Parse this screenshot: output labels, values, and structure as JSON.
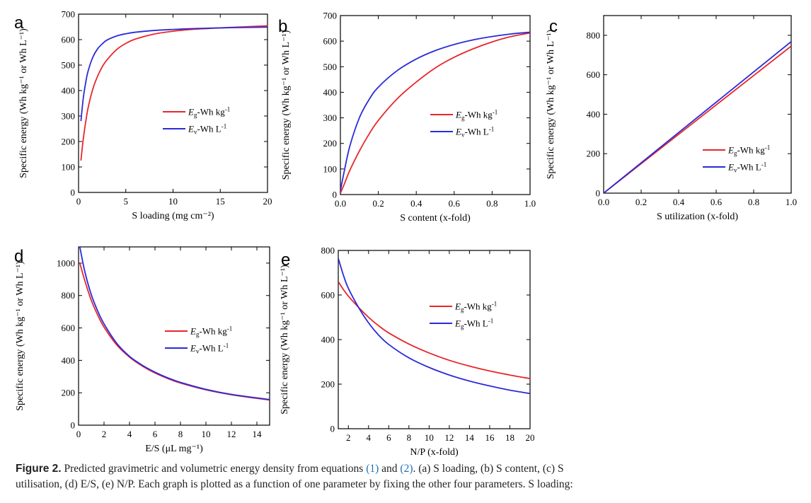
{
  "colors": {
    "red": "#e8262a",
    "blue": "#2b2bd9"
  },
  "chart_data": [
    {
      "letter": "a",
      "type": "line",
      "xlabel": "S loading (mg cm⁻²)",
      "ylabel": "Specific energy (Wh kg⁻¹ or Wh L⁻¹)",
      "xlim": [
        0,
        20
      ],
      "ylim": [
        0,
        700
      ],
      "xticks": [
        "0",
        "5",
        "10",
        "15",
        "20"
      ],
      "yticks": [
        "0",
        "100",
        "200",
        "300",
        "400",
        "500",
        "600",
        "700"
      ],
      "legend": {
        "position": "center-right"
      },
      "series": [
        {
          "name_main": "E",
          "name_sub": "g",
          "name_rest": "-Wh kg",
          "name_sup": "-1",
          "color": "red",
          "x": [
            0.25,
            0.5,
            0.75,
            1,
            1.5,
            2,
            2.5,
            3,
            4,
            5,
            6,
            8,
            10,
            12,
            15,
            18,
            20
          ],
          "y": [
            125,
            210,
            275,
            330,
            405,
            455,
            493,
            520,
            560,
            585,
            602,
            622,
            633,
            640,
            646,
            651,
            654
          ]
        },
        {
          "name_main": "E",
          "name_sub": "v",
          "name_rest": "-Wh L",
          "name_sup": "-1",
          "color": "blue",
          "x": [
            0.25,
            0.5,
            0.75,
            1,
            1.5,
            2,
            2.5,
            3,
            4,
            5,
            6,
            8,
            10,
            12,
            15,
            18,
            20
          ],
          "y": [
            280,
            370,
            430,
            475,
            530,
            563,
            583,
            598,
            614,
            623,
            629,
            636,
            640,
            643,
            646,
            648,
            649
          ]
        }
      ]
    },
    {
      "letter": "b",
      "type": "line",
      "xlabel": "S content (x-fold)",
      "ylabel": "Specific energy (Wh kg⁻¹ or Wh L⁻¹)",
      "xlim": [
        0,
        1
      ],
      "ylim": [
        0,
        700
      ],
      "xticks": [
        "0.0",
        "0.2",
        "0.4",
        "0.6",
        "0.8",
        "1.0"
      ],
      "yticks": [
        "0",
        "100",
        "200",
        "300",
        "400",
        "500",
        "600",
        "700"
      ],
      "legend": {
        "position": "center-right"
      },
      "series": [
        {
          "name_main": "E",
          "name_sub": "g",
          "name_rest": "-Wh kg",
          "name_sup": "-1",
          "color": "red",
          "x": [
            0,
            0.02,
            0.05,
            0.1,
            0.15,
            0.2,
            0.3,
            0.4,
            0.5,
            0.6,
            0.7,
            0.8,
            0.9,
            1.0
          ],
          "y": [
            5,
            40,
            95,
            170,
            235,
            290,
            375,
            440,
            495,
            537,
            570,
            597,
            618,
            632
          ]
        },
        {
          "name_main": "E",
          "name_sub": "v",
          "name_rest": "-Wh L",
          "name_sup": "-1",
          "color": "blue",
          "x": [
            0,
            0.02,
            0.05,
            0.1,
            0.15,
            0.2,
            0.3,
            0.4,
            0.5,
            0.6,
            0.7,
            0.8,
            0.9,
            1.0
          ],
          "y": [
            15,
            90,
            190,
            300,
            370,
            420,
            485,
            530,
            563,
            587,
            605,
            618,
            628,
            635
          ]
        }
      ]
    },
    {
      "letter": "c",
      "type": "line",
      "xlabel": "S utilization (x-fold)",
      "ylabel": "Specific energy (Wh kg⁻¹ or Wh L⁻¹)",
      "xlim": [
        0,
        1
      ],
      "ylim": [
        0,
        900
      ],
      "xticks": [
        "0.0",
        "0.2",
        "0.4",
        "0.6",
        "0.8",
        "1.0"
      ],
      "yticks": [
        "0",
        "200",
        "400",
        "600",
        "800"
      ],
      "legend": {
        "position": "lower-right"
      },
      "series": [
        {
          "name_main": "E",
          "name_sub": "g",
          "name_rest": "-Wh kg",
          "name_sup": "-1",
          "color": "red",
          "x": [
            0,
            1.0
          ],
          "y": [
            0,
            745
          ]
        },
        {
          "name_main": "E",
          "name_sub": "v",
          "name_rest": "-Wh L",
          "name_sup": "-1",
          "color": "blue",
          "x": [
            0,
            1.0
          ],
          "y": [
            0,
            768
          ]
        }
      ]
    },
    {
      "letter": "d",
      "type": "line",
      "xlabel": "E/S (μL mg⁻¹)",
      "ylabel": "Specific energy (Wh kg⁻¹ or Wh L⁻¹)",
      "xlim": [
        0,
        15
      ],
      "ylim": [
        0,
        1100
      ],
      "xticks": [
        "0",
        "2",
        "4",
        "6",
        "8",
        "10",
        "12",
        "14"
      ],
      "yticks": [
        "0",
        "200",
        "400",
        "600",
        "800",
        "1000"
      ],
      "legend": {
        "position": "center-right"
      },
      "series": [
        {
          "name_main": "E",
          "name_sub": "g",
          "name_rest": "-Wh kg",
          "name_sup": "-1",
          "color": "red",
          "x": [
            0.1,
            0.5,
            1,
            1.5,
            2,
            3,
            4,
            5,
            6,
            7,
            8,
            10,
            12,
            15
          ],
          "y": [
            1000,
            890,
            770,
            680,
            605,
            495,
            420,
            365,
            322,
            288,
            260,
            218,
            188,
            155
          ]
        },
        {
          "name_main": "E",
          "name_sub": "v",
          "name_rest": "-Wh L",
          "name_sup": "-1",
          "color": "blue",
          "x": [
            0.1,
            0.5,
            1,
            1.5,
            2,
            3,
            4,
            5,
            6,
            7,
            8,
            10,
            12,
            15
          ],
          "y": [
            1100,
            945,
            805,
            705,
            625,
            505,
            425,
            370,
            327,
            292,
            264,
            221,
            190,
            158
          ]
        }
      ]
    },
    {
      "letter": "e",
      "type": "line",
      "xlabel": "N/P (x-fold)",
      "ylabel": "Specific energy (Wh kg⁻¹ or Wh L⁻¹)",
      "xlim": [
        1,
        20
      ],
      "ylim": [
        0,
        800
      ],
      "xticks": [
        "2",
        "4",
        "6",
        "8",
        "10",
        "12",
        "14",
        "16",
        "18",
        "20"
      ],
      "yticks": [
        "0",
        "200",
        "400",
        "600",
        "800"
      ],
      "legend": {
        "position": "upper-right"
      },
      "series": [
        {
          "name_main": "E",
          "name_sub": "g",
          "name_rest": "-Wh kg",
          "name_sup": "-1",
          "color": "red",
          "x": [
            1,
            1.5,
            2,
            3,
            4,
            5,
            6,
            8,
            10,
            12,
            14,
            16,
            18,
            20
          ],
          "y": [
            660,
            625,
            595,
            545,
            500,
            462,
            430,
            380,
            340,
            307,
            281,
            259,
            241,
            225
          ]
        },
        {
          "name_main": "E",
          "name_sub": "g",
          "name_rest": "-Wh L",
          "name_sup": "-1",
          "color": "blue",
          "x": [
            1,
            1.5,
            2,
            3,
            4,
            5,
            6,
            8,
            10,
            12,
            14,
            16,
            18,
            20
          ],
          "y": [
            765,
            690,
            630,
            545,
            475,
            420,
            378,
            318,
            275,
            241,
            214,
            192,
            173,
            158
          ]
        }
      ]
    }
  ],
  "caption": {
    "label": "Figure 2.",
    "t1": " Predicted gravimetric and volumetric energy density from equations ",
    "ref1": "(1)",
    "t2": " and ",
    "ref2": "(2)",
    "t3": ". (a) S loading, (b) S content, (c) S",
    "line2": "utilisation, (d) E/S, (e) N/P. Each graph is plotted as a function of one parameter by fixing the other four parameters. S loading:"
  }
}
